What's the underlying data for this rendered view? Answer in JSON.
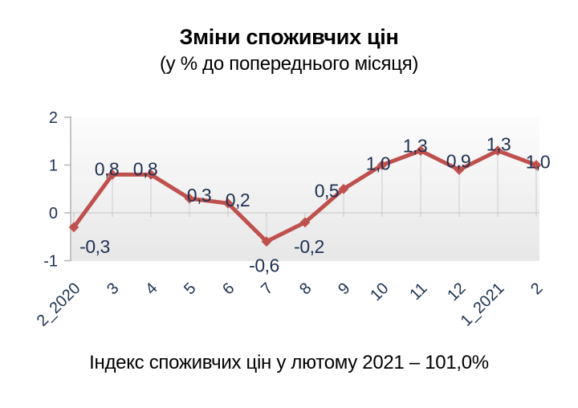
{
  "text_color": "#1d3152",
  "chart_data": {
    "type": "line",
    "title": "Зміни споживчих цін",
    "subtitle": "(у % до попереднього місяця)",
    "caption": "Індекс споживчих цін у лютому 2021 – 101,0%",
    "categories": [
      "2_2020",
      "3",
      "4",
      "5",
      "6",
      "7",
      "8",
      "9",
      "10",
      "11",
      "12",
      "1_2021",
      "2"
    ],
    "values": [
      -0.3,
      0.8,
      0.8,
      0.3,
      0.2,
      -0.6,
      -0.2,
      0.5,
      1.0,
      1.3,
      0.9,
      1.3,
      1.0
    ],
    "point_labels": [
      "-0,3",
      "0,8",
      "0,8",
      "0,3",
      "0,2",
      "-0,6",
      "-0,2",
      "0,5",
      "1,0",
      "1,3",
      "0,9",
      "1,3",
      "1,0"
    ],
    "y_ticks": [
      "2",
      "1",
      "0",
      "-1"
    ],
    "y_tick_values": [
      2,
      1,
      0,
      -1
    ],
    "ylim": [
      -1,
      2
    ],
    "grid": "zero-baseline-with-droplines",
    "legend": "none",
    "line_color": "#c0504d",
    "marker": "diamond",
    "dropline_color": "#d3d3d3",
    "zeroline_color": "#c6c6c6",
    "axis_color": "#b3b3b3",
    "label_color": "#1d3152"
  }
}
